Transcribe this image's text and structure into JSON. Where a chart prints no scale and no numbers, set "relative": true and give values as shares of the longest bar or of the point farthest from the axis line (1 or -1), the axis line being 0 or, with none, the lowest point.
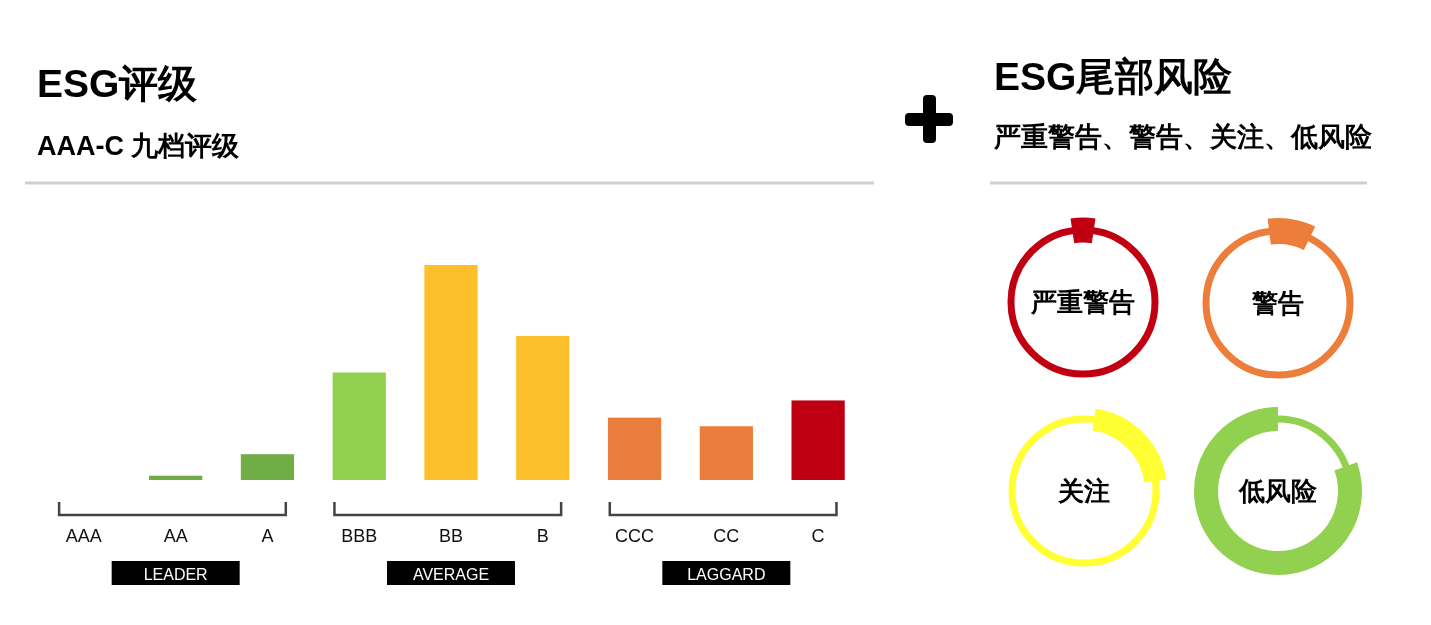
{
  "chart_data": [
    {
      "type": "bar",
      "title": "ESG评级",
      "subtitle": "AAA-C 九档评级",
      "relative": true,
      "categories": [
        "AAA",
        "AA",
        "A",
        "BBB",
        "BB",
        "B",
        "CCC",
        "CC",
        "C"
      ],
      "values": [
        0,
        0.02,
        0.12,
        0.5,
        1,
        0.67,
        0.29,
        0.25,
        0.37
      ],
      "colors": [
        null,
        "#70ad47",
        "#70ad47",
        "#92d050",
        "#fec02a",
        "#fec02a",
        "#eb7d3c",
        "#eb7d3c",
        "#be0012"
      ],
      "annotations": [
        "LEADER",
        "AVERAGE",
        "LAGGARD"
      ]
    },
    {
      "type": "other",
      "title": "ESG尾部风险",
      "subtitle": "严重警告、警告、关注、低风险",
      "annotations": [
        "严重警告",
        "警告",
        "关注",
        "低风险"
      ]
    }
  ]
}
